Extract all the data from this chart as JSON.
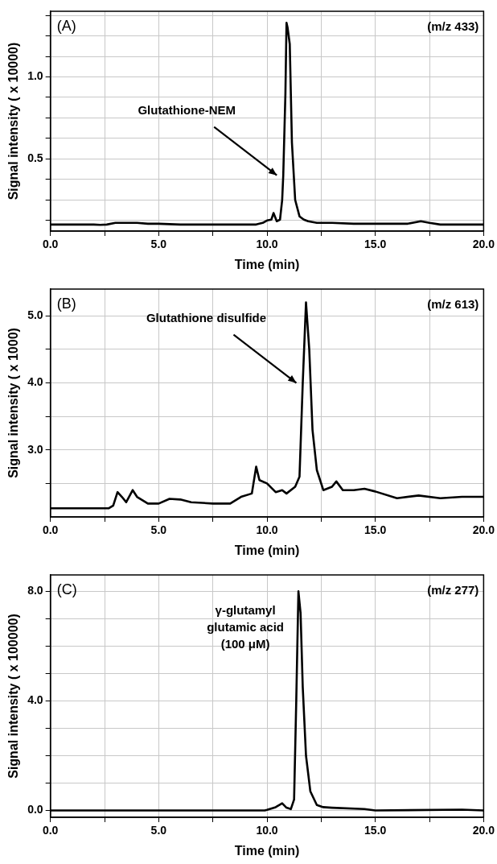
{
  "chart_data": [
    {
      "type": "line",
      "title": "(A)",
      "xlabel": "Time (min)",
      "ylabel": "Signal intensity ( x 10000)",
      "annotations": [
        "(m/z 433)",
        {
          "text": "Glutathione-NEM",
          "x": 10.75,
          "y": 0.4
        }
      ],
      "x": [
        0,
        1,
        2,
        2.3,
        2.6,
        3,
        3.5,
        4,
        4.5,
        5,
        6,
        7,
        8,
        9,
        9.5,
        9.8,
        10,
        10.2,
        10.3,
        10.45,
        10.6,
        10.7,
        10.75,
        10.85,
        10.9,
        10.95,
        11.05,
        11.15,
        11.3,
        11.5,
        11.6,
        11.7,
        11.9,
        12.3,
        13,
        14,
        15,
        16,
        16.5,
        17.1,
        17.5,
        18,
        19,
        20
      ],
      "series": [
        {
          "color": "#000000",
          "values": [
            0.1,
            0.1,
            0.1,
            0.098,
            0.1,
            0.11,
            0.11,
            0.11,
            0.105,
            0.105,
            0.1,
            0.1,
            0.1,
            0.1,
            0.1,
            0.11,
            0.125,
            0.13,
            0.17,
            0.12,
            0.13,
            0.25,
            0.4,
            0.9,
            1.33,
            1.3,
            1.2,
            0.6,
            0.25,
            0.15,
            0.14,
            0.13,
            0.12,
            0.11,
            0.11,
            0.105,
            0.105,
            0.105,
            0.105,
            0.12,
            0.11,
            0.1,
            0.1,
            0.1
          ]
        }
      ],
      "xlim": [
        0,
        20
      ],
      "xticks": [
        {
          "value": 0,
          "label": "0.0"
        },
        {
          "value": 2.5,
          "label": null
        },
        {
          "value": 5,
          "label": "5.0"
        },
        {
          "value": 7.5,
          "label": null
        },
        {
          "value": 10,
          "label": "10.0"
        },
        {
          "value": 12.5,
          "label": null
        },
        {
          "value": 15,
          "label": "15.0"
        },
        {
          "value": 17.5,
          "label": null
        },
        {
          "value": 20,
          "label": "20.0"
        }
      ],
      "ylim": [
        0.06,
        1.4
      ],
      "yticks": [
        {
          "value": 0.125,
          "label": null
        },
        {
          "value": 0.25,
          "label": null
        },
        {
          "value": 0.375,
          "label": null
        },
        0.5,
        {
          "value": 0.625,
          "label": null
        },
        {
          "value": 0.75,
          "label": null
        },
        {
          "value": 0.875,
          "label": null
        },
        {
          "value": 1,
          "label": "1.0"
        },
        {
          "value": 1.125,
          "label": null
        },
        {
          "value": 1.25,
          "label": null
        },
        {
          "value": 1.375,
          "label": null
        }
      ],
      "grid": true,
      "legend": false,
      "marker": "none",
      "line_style": "solid"
    },
    {
      "type": "line",
      "title": "(B)",
      "xlabel": "Time (min)",
      "ylabel": "Signal intensity ( x 1000)",
      "annotations": [
        "(m/z 613)",
        {
          "text": "Glutathione disulfide",
          "x": 11.65,
          "y": 4.0
        }
      ],
      "x": [
        0,
        1,
        2,
        2.7,
        2.9,
        3.1,
        3.3,
        3.5,
        3.8,
        4,
        4.5,
        5,
        5.5,
        6,
        6.5,
        7.5,
        8.3,
        8.8,
        9.3,
        9.5,
        9.65,
        10,
        10.4,
        10.7,
        10.9,
        11.3,
        11.5,
        11.65,
        11.8,
        11.95,
        12.1,
        12.3,
        12.6,
        13,
        13.2,
        13.5,
        14,
        14.5,
        15,
        16,
        17,
        18,
        19,
        20
      ],
      "series": [
        {
          "color": "#000000",
          "values": [
            2.13,
            2.13,
            2.13,
            2.13,
            2.17,
            2.37,
            2.3,
            2.22,
            2.4,
            2.3,
            2.2,
            2.2,
            2.27,
            2.26,
            2.22,
            2.2,
            2.2,
            2.3,
            2.35,
            2.75,
            2.55,
            2.5,
            2.37,
            2.4,
            2.35,
            2.45,
            2.6,
            4.0,
            5.2,
            4.5,
            3.3,
            2.7,
            2.4,
            2.45,
            2.53,
            2.4,
            2.4,
            2.42,
            2.38,
            2.28,
            2.32,
            2.28,
            2.3,
            2.3
          ]
        }
      ],
      "xlim": [
        0,
        20
      ],
      "xticks": [
        {
          "value": 0,
          "label": "0.0"
        },
        {
          "value": 2.5,
          "label": null
        },
        {
          "value": 5,
          "label": "5.0"
        },
        {
          "value": 7.5,
          "label": null
        },
        {
          "value": 10,
          "label": "10.0"
        },
        {
          "value": 12.5,
          "label": null
        },
        {
          "value": 15,
          "label": "15.0"
        },
        {
          "value": 17.5,
          "label": null
        },
        {
          "value": 20,
          "label": "20.0"
        }
      ],
      "ylim": [
        2.0,
        5.4
      ],
      "yticks": [
        {
          "value": 2.5,
          "label": null
        },
        {
          "value": 3,
          "label": "3.0"
        },
        {
          "value": 3.5,
          "label": null
        },
        {
          "value": 4,
          "label": "4.0"
        },
        {
          "value": 4.5,
          "label": null
        },
        {
          "value": 5,
          "label": "5.0"
        }
      ],
      "grid": true,
      "legend": false,
      "marker": "none",
      "line_style": "solid"
    },
    {
      "type": "line",
      "title": "(C)",
      "xlabel": "Time (min)",
      "ylabel": "Signal intensity ( x 100000)",
      "annotations": [
        "(m/z 277)",
        {
          "text": "γ-glutamyl\nglutamic acid\n(100 μM)",
          "x": 11.45,
          "y": 8.0
        }
      ],
      "x": [
        0,
        5,
        9.9,
        10,
        10.4,
        10.7,
        10.9,
        11.1,
        11.25,
        11.35,
        11.45,
        11.55,
        11.65,
        11.8,
        12,
        12.3,
        12.6,
        13,
        14.5,
        15,
        19,
        20
      ],
      "series": [
        {
          "color": "#000000",
          "values": [
            0,
            0,
            0,
            0.02,
            0.12,
            0.26,
            0.1,
            0.05,
            0.4,
            4,
            8.0,
            7.2,
            4.5,
            2.0,
            0.7,
            0.2,
            0.12,
            0.1,
            0.05,
            0,
            0.03,
            0
          ]
        }
      ],
      "xlim": [
        0,
        20
      ],
      "xticks": [
        {
          "value": 0,
          "label": "0.0"
        },
        {
          "value": 2.5,
          "label": null
        },
        {
          "value": 5,
          "label": "5.0"
        },
        {
          "value": 7.5,
          "label": null
        },
        {
          "value": 10,
          "label": "10.0"
        },
        {
          "value": 12.5,
          "label": null
        },
        {
          "value": 15,
          "label": "15.0"
        },
        {
          "value": 17.5,
          "label": null
        },
        {
          "value": 20,
          "label": "20.0"
        }
      ],
      "ylim": [
        -0.25,
        8.6
      ],
      "yticks": [
        {
          "value": 0,
          "label": "0.0"
        },
        {
          "value": 1,
          "label": null
        },
        {
          "value": 2,
          "label": null
        },
        {
          "value": 3,
          "label": null
        },
        {
          "value": 4,
          "label": "4.0"
        },
        {
          "value": 5,
          "label": null
        },
        {
          "value": 6,
          "label": null
        },
        {
          "value": 7,
          "label": null
        },
        {
          "value": 8,
          "label": "8.0"
        }
      ],
      "grid": true,
      "legend": false,
      "marker": "none",
      "line_style": "solid"
    }
  ]
}
